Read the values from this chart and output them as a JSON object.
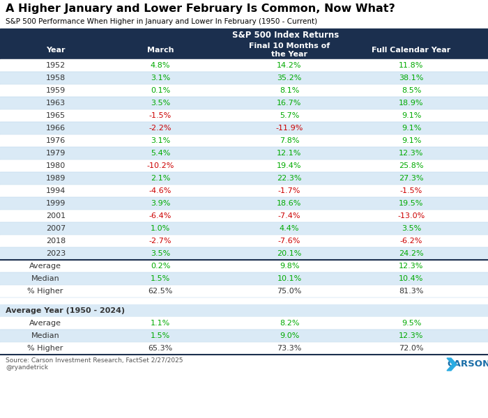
{
  "title": "A Higher January and Lower February Is Common, Now What?",
  "subtitle": "S&P 500 Performance When Higher in January and Lower In February (1950 - Current)",
  "header_label": "S&P 500 Index Returns",
  "col_headers": [
    "Year",
    "March",
    "Final 10 Months of\nthe Year",
    "Full Calendar Year"
  ],
  "rows": [
    [
      "1952",
      "4.8%",
      "14.2%",
      "11.8%"
    ],
    [
      "1958",
      "3.1%",
      "35.2%",
      "38.1%"
    ],
    [
      "1959",
      "0.1%",
      "8.1%",
      "8.5%"
    ],
    [
      "1963",
      "3.5%",
      "16.7%",
      "18.9%"
    ],
    [
      "1965",
      "-1.5%",
      "5.7%",
      "9.1%"
    ],
    [
      "1966",
      "-2.2%",
      "-11.9%",
      "9.1%"
    ],
    [
      "1976",
      "3.1%",
      "7.8%",
      "9.1%"
    ],
    [
      "1979",
      "5.4%",
      "12.1%",
      "12.3%"
    ],
    [
      "1980",
      "-10.2%",
      "19.4%",
      "25.8%"
    ],
    [
      "1989",
      "2.1%",
      "22.3%",
      "27.3%"
    ],
    [
      "1994",
      "-4.6%",
      "-1.7%",
      "-1.5%"
    ],
    [
      "1999",
      "3.9%",
      "18.6%",
      "19.5%"
    ],
    [
      "2001",
      "-6.4%",
      "-7.4%",
      "-13.0%"
    ],
    [
      "2007",
      "1.0%",
      "4.4%",
      "3.5%"
    ],
    [
      "2018",
      "-2.7%",
      "-7.6%",
      "-6.2%"
    ],
    [
      "2023",
      "3.5%",
      "20.1%",
      "24.2%"
    ]
  ],
  "summary_rows": [
    [
      "Average",
      "0.2%",
      "9.8%",
      "12.3%"
    ],
    [
      "Median",
      "1.5%",
      "10.1%",
      "10.4%"
    ],
    [
      "% Higher",
      "62.5%",
      "75.0%",
      "81.3%"
    ]
  ],
  "avg_year_label": "Average Year (1950 - 2024)",
  "avg_year_rows": [
    [
      "Average",
      "1.1%",
      "8.2%",
      "9.5%"
    ],
    [
      "Median",
      "1.5%",
      "9.0%",
      "12.3%"
    ],
    [
      "% Higher",
      "65.3%",
      "73.3%",
      "72.0%"
    ]
  ],
  "source_text": "Source: Carson Investment Research, FactSet 2/27/2025\n@ryandetrick",
  "header_bg": "#1b2f4e",
  "header_fg": "#ffffff",
  "row_bg_light": "#daeaf6",
  "row_bg_white": "#ffffff",
  "positive_color": "#00aa00",
  "negative_color": "#cc0000",
  "neutral_color": "#333333",
  "pct_higher_color": "#333333",
  "title_color": "#000000",
  "subtitle_color": "#000000",
  "sep_color": "#1b2f4e",
  "grid_color": "#b0cfe8"
}
